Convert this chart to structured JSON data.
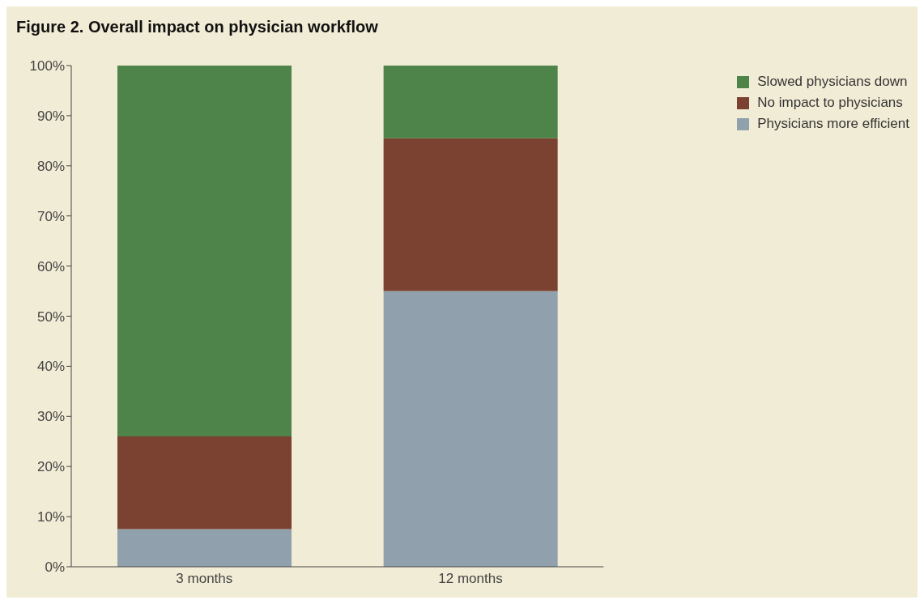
{
  "chart_data": {
    "type": "bar",
    "title": "Figure 2. Overall impact on physician workflow",
    "categories": [
      "3 months",
      "12 months"
    ],
    "stacked": true,
    "series": [
      {
        "name": "Physicians more efficient",
        "color": "#91a0ad",
        "values": [
          7.5,
          55
        ]
      },
      {
        "name": "No impact to physicians",
        "color": "#7b4131",
        "values": [
          18.5,
          30.5
        ]
      },
      {
        "name": "Slowed physicians down",
        "color": "#4e8449",
        "values": [
          74,
          14.5
        ]
      }
    ],
    "ylim": [
      0,
      100
    ],
    "yticks": [
      {
        "value": 0,
        "label": "0%"
      },
      {
        "value": 10,
        "label": "10%"
      },
      {
        "value": 20,
        "label": "20%"
      },
      {
        "value": 30,
        "label": "30%"
      },
      {
        "value": 40,
        "label": "40%"
      },
      {
        "value": 50,
        "label": "50%"
      },
      {
        "value": 60,
        "label": "60%"
      },
      {
        "value": 70,
        "label": "70%"
      },
      {
        "value": 80,
        "label": "80%"
      },
      {
        "value": 90,
        "label": "90%"
      },
      {
        "value": 100,
        "label": "100%"
      }
    ],
    "grid": false,
    "legend": "top right"
  }
}
